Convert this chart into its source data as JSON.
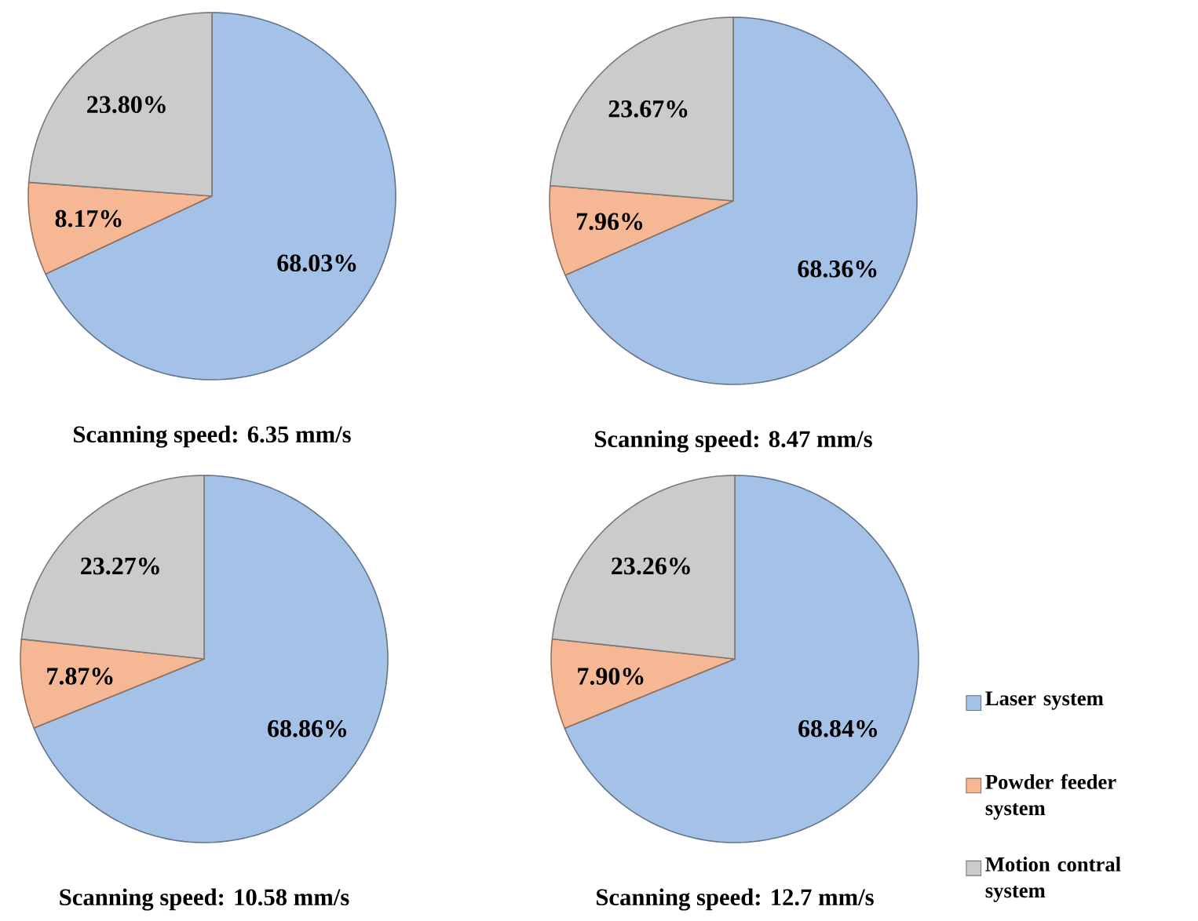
{
  "chart_data": [
    {
      "type": "pie",
      "title": "Scanning speed: 6.35 mm/s",
      "categories": [
        null,
        null,
        null
      ],
      "values": [
        68.03,
        8.17,
        23.8
      ],
      "value_labels": [
        "68.03%",
        "8.17%",
        "23.80%"
      ],
      "colors": [
        "#a4c2e8",
        "#f6b894",
        "#cbcbcb"
      ]
    },
    {
      "type": "pie",
      "title": "Scanning speed:  8.47 mm/s",
      "categories": [
        null,
        null,
        null
      ],
      "values": [
        68.36,
        7.96,
        23.67
      ],
      "value_labels": [
        "68.36%",
        "7.96%",
        "23.67%"
      ],
      "colors": [
        "#a4c2e8",
        "#f6b894",
        "#cbcbcb"
      ]
    },
    {
      "type": "pie",
      "title": "Scanning speed: 10.58 mm/s",
      "categories": [
        null,
        null,
        null
      ],
      "values": [
        68.86,
        7.87,
        23.27
      ],
      "value_labels": [
        "68.86%",
        "7.87%",
        "23.27%"
      ],
      "colors": [
        "#a4c2e8",
        "#f6b894",
        "#cbcbcb"
      ]
    },
    {
      "type": "pie",
      "title": "Scanning speed: 12.7 mm/s",
      "categories": [
        "Laser system",
        "Powder feeder system",
        "Motion contral system"
      ],
      "values": [
        68.84,
        7.9,
        23.26
      ],
      "value_labels": [
        "68.84%",
        "7.90%",
        "23.26%"
      ],
      "colors": [
        "#a4c2e8",
        "#f6b894",
        "#cbcbcb"
      ],
      "legend": "right"
    }
  ]
}
